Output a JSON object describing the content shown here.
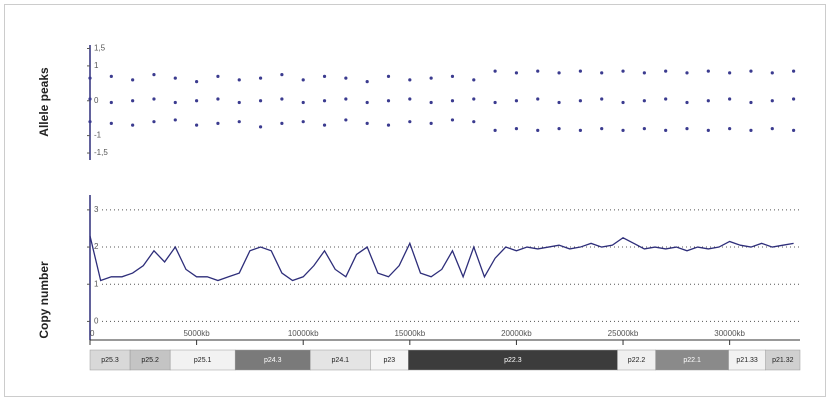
{
  "chart_data": [
    {
      "type": "scatter",
      "ylabel": "Allele peaks",
      "xlim": [
        0,
        33300
      ],
      "ylim": [
        -1.7,
        1.6
      ],
      "yticks": [
        {
          "value": 1.5,
          "label": "1,5"
        },
        1,
        0,
        -1,
        {
          "value": -1.5,
          "label": "-1,5"
        }
      ],
      "x": [
        0,
        1000,
        2000,
        3000,
        4000,
        5000,
        6000,
        7000,
        8000,
        9000,
        10000,
        11000,
        12000,
        13000,
        14000,
        15000,
        16000,
        17000,
        18000,
        19000,
        20000,
        21000,
        22000,
        23000,
        24000,
        25000,
        26000,
        27000,
        28000,
        29000,
        30000,
        31000,
        32000,
        33000
      ],
      "series": [
        {
          "color": "#3b3b8f",
          "values": [
            0.65,
            0.7,
            0.6,
            0.75,
            0.65,
            0.55,
            0.7,
            0.6,
            0.65,
            0.75,
            0.6,
            0.7,
            0.65,
            0.55,
            0.7,
            0.6,
            0.65,
            0.7,
            0.6,
            0.85,
            0.8,
            0.85,
            0.8,
            0.85,
            0.8,
            0.85,
            0.8,
            0.85,
            0.8,
            0.85,
            0.8,
            0.85,
            0.8,
            0.85
          ]
        },
        {
          "color": "#3b3b8f",
          "values": [
            0.05,
            -0.05,
            0,
            0.05,
            -0.05,
            0,
            0.05,
            -0.05,
            0,
            0.05,
            -0.05,
            0,
            0.05,
            -0.05,
            0,
            0.05,
            -0.05,
            0,
            0.05,
            -0.05,
            0,
            0.05,
            -0.05,
            0,
            0.05,
            -0.05,
            0,
            0.05,
            -0.05,
            0,
            0.05,
            -0.05,
            0,
            0.05
          ]
        },
        {
          "color": "#3b3b8f",
          "values": [
            -0.6,
            -0.65,
            -0.7,
            -0.6,
            -0.55,
            -0.7,
            -0.65,
            -0.6,
            -0.75,
            -0.65,
            -0.6,
            -0.7,
            -0.55,
            -0.65,
            -0.7,
            -0.6,
            -0.65,
            -0.55,
            -0.6,
            -0.85,
            -0.8,
            -0.85,
            -0.8,
            -0.85,
            -0.8,
            -0.85,
            -0.8,
            -0.85,
            -0.8,
            -0.85,
            -0.8,
            -0.85,
            -0.8,
            -0.85
          ]
        }
      ]
    },
    {
      "type": "line",
      "ylabel": "Copy number",
      "xlim": [
        0,
        33300
      ],
      "ylim": [
        -0.5,
        3.4
      ],
      "grid": true,
      "yticks": [
        3,
        2,
        1,
        0
      ],
      "xticks": [
        0,
        {
          "value": 5000,
          "label": "5000kb"
        },
        {
          "value": 10000,
          "label": "10000kb"
        },
        {
          "value": 15000,
          "label": "15000kb"
        },
        {
          "value": 20000,
          "label": "20000kb"
        },
        {
          "value": 25000,
          "label": "25000kb"
        },
        {
          "value": 30000,
          "label": "30000kb"
        }
      ],
      "x": [
        0,
        500,
        1000,
        1500,
        2000,
        2500,
        3000,
        3500,
        4000,
        4500,
        5000,
        5500,
        6000,
        6500,
        7000,
        7500,
        8000,
        8500,
        9000,
        9500,
        10000,
        10500,
        11000,
        11500,
        12000,
        12500,
        13000,
        13500,
        14000,
        14500,
        15000,
        15500,
        16000,
        16500,
        17000,
        17500,
        18000,
        18500,
        19000,
        19500,
        20000,
        20500,
        21000,
        21500,
        22000,
        22500,
        23000,
        23500,
        24000,
        24500,
        25000,
        25500,
        26000,
        26500,
        27000,
        27500,
        28000,
        28500,
        29000,
        29500,
        30000,
        30500,
        31000,
        31500,
        32000,
        32500,
        33000
      ],
      "series": [
        {
          "color": "#2e2e7a",
          "values": [
            2.3,
            1.1,
            1.2,
            1.2,
            1.3,
            1.5,
            1.9,
            1.6,
            2.0,
            1.4,
            1.2,
            1.2,
            1.1,
            1.2,
            1.3,
            1.9,
            2.0,
            1.9,
            1.3,
            1.1,
            1.2,
            1.5,
            1.9,
            1.4,
            1.2,
            1.8,
            2.0,
            1.3,
            1.2,
            1.5,
            2.1,
            1.3,
            1.2,
            1.4,
            1.9,
            1.2,
            2.0,
            1.2,
            1.7,
            2.0,
            1.9,
            2.0,
            1.95,
            2.0,
            2.05,
            1.95,
            2.0,
            2.1,
            2.0,
            2.05,
            2.25,
            2.1,
            1.95,
            2.0,
            1.95,
            2.0,
            1.9,
            2.0,
            1.95,
            2.0,
            2.15,
            2.05,
            2.0,
            2.1,
            2.0,
            2.05,
            2.1
          ]
        }
      ],
      "bands": [
        {
          "label": "p25.3",
          "start": 0,
          "end": 1880,
          "color": "#d8d8d8"
        },
        {
          "label": "p25.2",
          "start": 1880,
          "end": 3760,
          "color": "#c4c4c4"
        },
        {
          "label": "p25.1",
          "start": 3760,
          "end": 6810,
          "color": "#f2f2f2"
        },
        {
          "label": "p24.3",
          "start": 6810,
          "end": 10330,
          "color": "#7a7a7a"
        },
        {
          "label": "p24.1",
          "start": 10330,
          "end": 13150,
          "color": "#e4e4e4"
        },
        {
          "label": "p23",
          "start": 13150,
          "end": 14930,
          "color": "#f4f4f4"
        },
        {
          "label": "p22.3",
          "start": 14930,
          "end": 24740,
          "color": "#3c3c3c"
        },
        {
          "label": "p22.2",
          "start": 24740,
          "end": 26530,
          "color": "#f0f0f0"
        },
        {
          "label": "p22.1",
          "start": 26530,
          "end": 29950,
          "color": "#8a8a8a"
        },
        {
          "label": "p21.33",
          "start": 29950,
          "end": 31690,
          "color": "#f2f2f2"
        },
        {
          "label": "p21.32",
          "start": 31690,
          "end": 33300,
          "color": "#d0d0d0"
        }
      ]
    }
  ]
}
